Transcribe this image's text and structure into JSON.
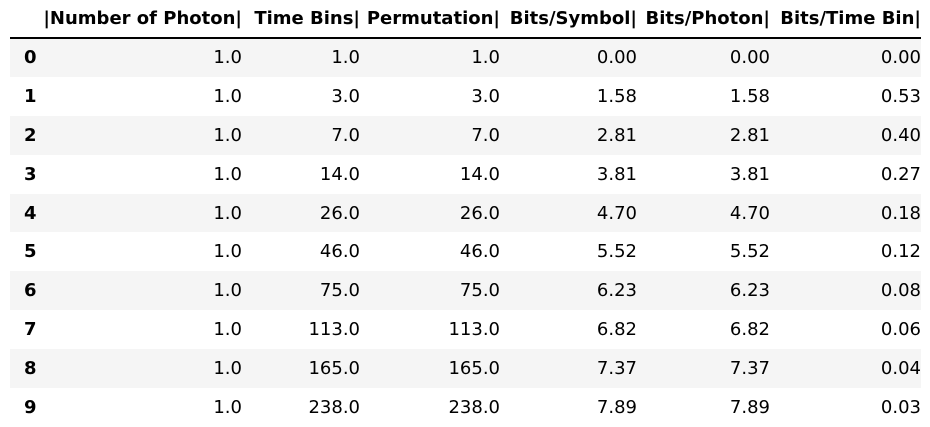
{
  "table": {
    "columns": [
      "",
      "|Number of Photon|",
      "Time Bins|",
      "Permutation|",
      "Bits/Symbol|",
      "Bits/Photon|",
      "Bits/Time Bin|"
    ],
    "rows": [
      [
        "0",
        "1.0",
        "1.0",
        "1.0",
        "0.00",
        "0.00",
        "0.00"
      ],
      [
        "1",
        "1.0",
        "3.0",
        "3.0",
        "1.58",
        "1.58",
        "0.53"
      ],
      [
        "2",
        "1.0",
        "7.0",
        "7.0",
        "2.81",
        "2.81",
        "0.40"
      ],
      [
        "3",
        "1.0",
        "14.0",
        "14.0",
        "3.81",
        "3.81",
        "0.27"
      ],
      [
        "4",
        "1.0",
        "26.0",
        "26.0",
        "4.70",
        "4.70",
        "0.18"
      ],
      [
        "5",
        "1.0",
        "46.0",
        "46.0",
        "5.52",
        "5.52",
        "0.12"
      ],
      [
        "6",
        "1.0",
        "75.0",
        "75.0",
        "6.23",
        "6.23",
        "0.08"
      ],
      [
        "7",
        "1.0",
        "113.0",
        "113.0",
        "6.82",
        "6.82",
        "0.06"
      ],
      [
        "8",
        "1.0",
        "165.0",
        "165.0",
        "7.37",
        "7.37",
        "0.04"
      ],
      [
        "9",
        "1.0",
        "238.0",
        "238.0",
        "7.89",
        "7.89",
        "0.03"
      ]
    ]
  }
}
